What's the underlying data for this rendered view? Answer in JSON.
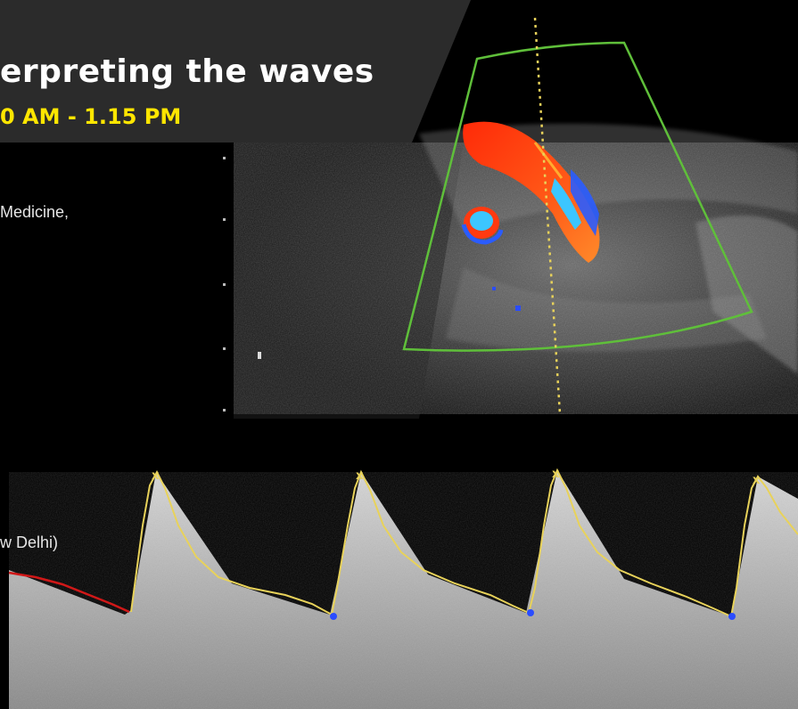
{
  "banner": {
    "title": "erpreting the waves",
    "time": "0 AM - 1.15 PM",
    "title_color": "#ffffff",
    "time_color": "#ffe600",
    "panel_color": "#2b2b2b"
  },
  "side_text": {
    "line1": "Medicine,",
    "line2": "w Delhi)"
  },
  "image": {
    "description_tags": [
      "color-doppler-ultrasound",
      "doppler-waveform",
      "sampling-sector"
    ],
    "colors": {
      "sector_outline": "#5fbf3a",
      "flow_red": "#ff3a10",
      "flow_blue": "#2a5cff",
      "flow_cyan": "#3cc6ff",
      "trace_yellow": "#e8d25a",
      "trace_red": "#d01818",
      "marker_blue": "#2a4cff"
    }
  }
}
